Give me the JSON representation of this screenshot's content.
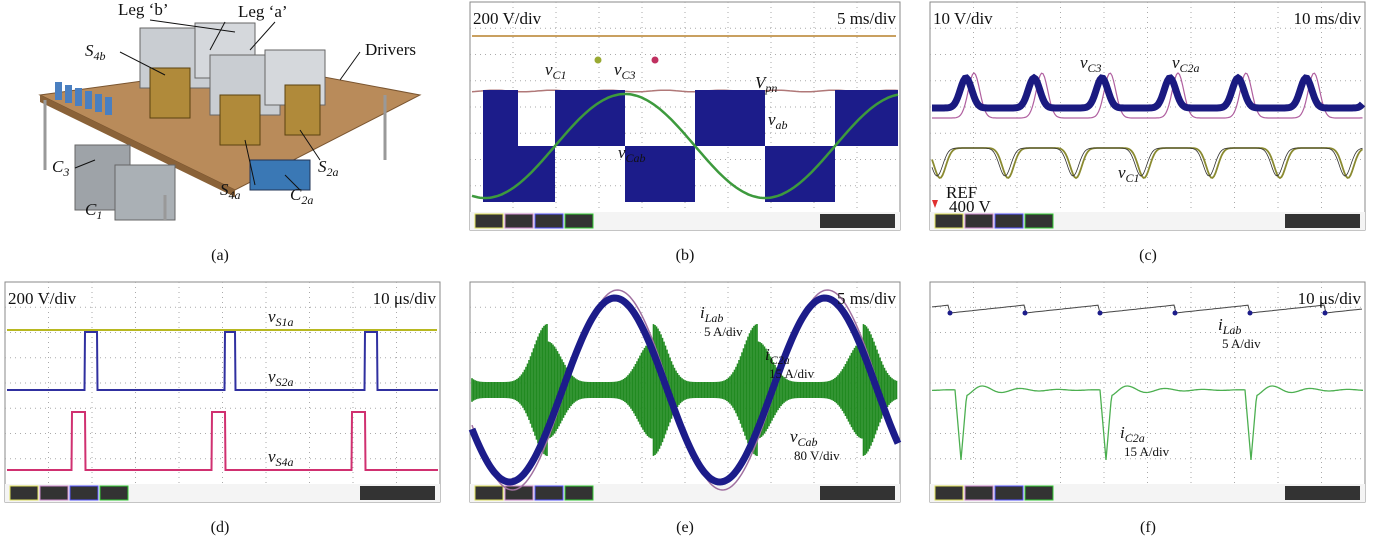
{
  "panels": [
    {
      "caption": "(a)",
      "labels": [
        {
          "text": "Leg ‘b’"
        },
        {
          "text": "Leg ‘a’"
        },
        {
          "main": "S",
          "sub": "4b"
        },
        {
          "text": "Drivers"
        },
        {
          "main": "S",
          "sub": "4a"
        },
        {
          "main": "S",
          "sub": "2a"
        },
        {
          "main": "C",
          "sub": "2a"
        },
        {
          "main": "C",
          "sub": "3"
        },
        {
          "main": "C",
          "sub": "1"
        }
      ]
    },
    {
      "caption": "(b)",
      "scale_left": "200 V/div",
      "scale_right": "5 ms/div",
      "labels": [
        {
          "main": "V",
          "sub": "pn"
        },
        {
          "main": "v",
          "sub": "C1"
        },
        {
          "main": "v",
          "sub": "C3"
        },
        {
          "main": "v",
          "sub": "Cab"
        },
        {
          "main": "v",
          "sub": "ab"
        }
      ]
    },
    {
      "caption": "(c)",
      "scale_left": "10 V/div",
      "scale_right": "10 ms/div",
      "labels": [
        {
          "main": "v",
          "sub": "C3"
        },
        {
          "main": "v",
          "sub": "C2a"
        },
        {
          "main": "v",
          "sub": "C1"
        },
        {
          "text": "REF"
        },
        {
          "text": "400 V"
        }
      ]
    },
    {
      "caption": "(d)",
      "scale_left": "200 V/div",
      "scale_right": "10 μs/div",
      "labels": [
        {
          "main": "v",
          "sub": "S1a"
        },
        {
          "main": "v",
          "sub": "S2a"
        },
        {
          "main": "v",
          "sub": "S4a"
        }
      ]
    },
    {
      "caption": "(e)",
      "scale_right": "5 ms/div",
      "labels": [
        {
          "main": "i",
          "sub": "Lab",
          "unit": "5 A/div"
        },
        {
          "main": "i",
          "sub": "C2a",
          "unit": "15 A/div"
        },
        {
          "main": "v",
          "sub": "Cab",
          "unit": "80 V/div"
        }
      ]
    },
    {
      "caption": "(f)",
      "scale_right": "10 μs/div",
      "labels": [
        {
          "main": "i",
          "sub": "Lab",
          "unit": "5 A/div"
        },
        {
          "main": "i",
          "sub": "C2a",
          "unit": "15 A/div"
        }
      ]
    }
  ]
}
